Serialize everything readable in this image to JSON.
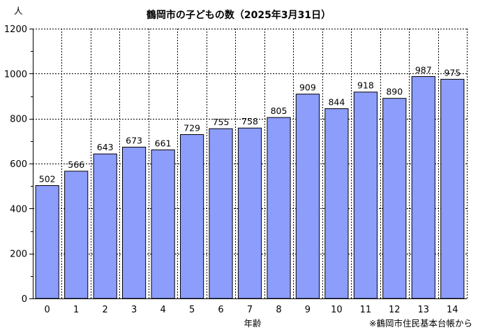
{
  "chart_data": {
    "type": "bar",
    "title": "鶴岡市の子どもの数（2025年3月31日）",
    "xlabel": "年齢",
    "ylabel": "人",
    "categories": [
      "0",
      "1",
      "2",
      "3",
      "4",
      "5",
      "6",
      "7",
      "8",
      "9",
      "10",
      "11",
      "12",
      "13",
      "14"
    ],
    "values": [
      502,
      566,
      643,
      673,
      661,
      729,
      755,
      758,
      805,
      909,
      844,
      918,
      890,
      987,
      975
    ],
    "ylim": [
      0,
      1200
    ],
    "yticks": [
      0,
      200,
      400,
      600,
      800,
      1000,
      1200
    ],
    "ytick_labels": [
      "0",
      "200",
      "400",
      "600",
      "800",
      "1000",
      "1200"
    ],
    "grid": true,
    "bar_color": "#8c9dfc",
    "source": "※鶴岡市住民基本台帳から"
  }
}
